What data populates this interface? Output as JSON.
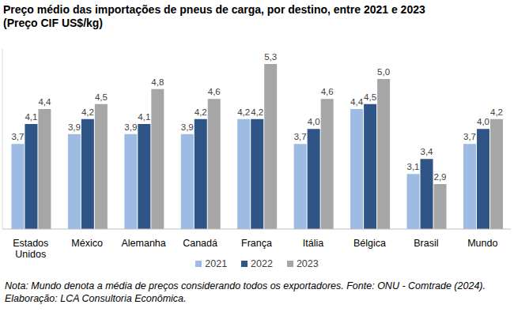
{
  "chart_data": {
    "type": "bar",
    "title": "Preço médio das importações de pneus de carga, por destino, entre 2021 e 2023",
    "subtitle": "(Preço CIF US$/kg)",
    "note": "Nota: Mundo denota a média de preços considerando todos os exportadores. Fonte: ONU - Comtrade (2024). Elaboração: LCA Consultoria Econômica.",
    "categories": [
      "Estados Unidos",
      "México",
      "Alemanha",
      "Canadá",
      "França",
      "Itália",
      "Bélgica",
      "Brasil",
      "Mundo"
    ],
    "series": [
      {
        "name": "2021",
        "color": "#9dbbe3",
        "values": [
          3.7,
          3.9,
          3.9,
          3.9,
          4.2,
          3.7,
          4.4,
          3.1,
          3.7
        ],
        "value_labels": [
          "3,7",
          "3,9",
          "3,9",
          "3,9",
          "4,2",
          "3,7",
          "4,4",
          "3,1",
          "3,7"
        ]
      },
      {
        "name": "2022",
        "color": "#2f5587",
        "values": [
          4.1,
          4.2,
          4.1,
          4.2,
          4.2,
          4.0,
          4.5,
          3.4,
          4.0
        ],
        "value_labels": [
          "4,1",
          "4,2",
          "4,1",
          "4,2",
          "4,2",
          "4,0",
          "4,5",
          "3,4",
          "4,0"
        ]
      },
      {
        "name": "2023",
        "color": "#a6a6a6",
        "values": [
          4.4,
          4.5,
          4.8,
          4.6,
          5.3,
          4.6,
          5.0,
          2.9,
          4.2
        ],
        "value_labels": [
          "4,4",
          "4,5",
          "4,8",
          "4,6",
          "5,3",
          "4,6",
          "5,0",
          "2,9",
          "4,2"
        ]
      }
    ],
    "ylim": [
      2,
      5.6
    ],
    "tick_labels": "x",
    "data_labels": true,
    "grid": false,
    "legend": "bottom"
  }
}
